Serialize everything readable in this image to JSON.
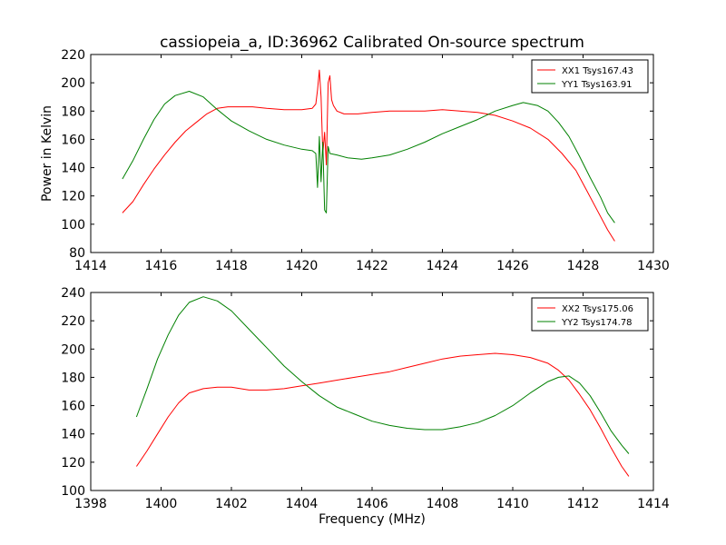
{
  "chart_data": [
    {
      "type": "line",
      "title": "cassiopeia_a, ID:36962 Calibrated On-source spectrum",
      "xlabel": "",
      "ylabel": "Power in Kelvin",
      "xlim": [
        1414,
        1430
      ],
      "ylim": [
        80,
        220
      ],
      "xticks": [
        1414,
        1416,
        1418,
        1420,
        1422,
        1424,
        1426,
        1428,
        1430
      ],
      "yticks": [
        80,
        100,
        120,
        140,
        160,
        180,
        200,
        220
      ],
      "grid": false,
      "legend_position": "top-right",
      "series": [
        {
          "name": "XX1 Tsys167.43",
          "color": "#ff0000",
          "points": [
            [
              1414.9,
              108
            ],
            [
              1415.2,
              116
            ],
            [
              1415.5,
              128
            ],
            [
              1415.8,
              139
            ],
            [
              1416.1,
              149
            ],
            [
              1416.4,
              158
            ],
            [
              1416.7,
              166
            ],
            [
              1417.0,
              172
            ],
            [
              1417.3,
              178
            ],
            [
              1417.6,
              182
            ],
            [
              1417.9,
              183
            ],
            [
              1418.2,
              183
            ],
            [
              1418.6,
              183
            ],
            [
              1419.0,
              182
            ],
            [
              1419.5,
              181
            ],
            [
              1420.0,
              181
            ],
            [
              1420.3,
              182
            ],
            [
              1420.4,
              185
            ],
            [
              1420.45,
              195
            ],
            [
              1420.5,
              209
            ],
            [
              1420.55,
              190
            ],
            [
              1420.6,
              150
            ],
            [
              1420.65,
              165
            ],
            [
              1420.7,
              142
            ],
            [
              1420.75,
              200
            ],
            [
              1420.8,
              205
            ],
            [
              1420.85,
              188
            ],
            [
              1420.9,
              184
            ],
            [
              1421.0,
              180
            ],
            [
              1421.2,
              178
            ],
            [
              1421.6,
              178
            ],
            [
              1422.0,
              179
            ],
            [
              1422.5,
              180
            ],
            [
              1423.0,
              180
            ],
            [
              1423.5,
              180
            ],
            [
              1424.0,
              181
            ],
            [
              1424.5,
              180
            ],
            [
              1425.0,
              179
            ],
            [
              1425.5,
              177
            ],
            [
              1426.0,
              173
            ],
            [
              1426.5,
              168
            ],
            [
              1427.0,
              160
            ],
            [
              1427.4,
              150
            ],
            [
              1427.8,
              138
            ],
            [
              1428.1,
              124
            ],
            [
              1428.4,
              110
            ],
            [
              1428.7,
              96
            ],
            [
              1428.9,
              88
            ]
          ]
        },
        {
          "name": "YY1 Tsys163.91",
          "color": "#008000",
          "points": [
            [
              1414.9,
              132
            ],
            [
              1415.2,
              145
            ],
            [
              1415.5,
              160
            ],
            [
              1415.8,
              174
            ],
            [
              1416.1,
              185
            ],
            [
              1416.4,
              191
            ],
            [
              1416.8,
              194
            ],
            [
              1417.2,
              190
            ],
            [
              1417.6,
              181
            ],
            [
              1418.0,
              173
            ],
            [
              1418.5,
              166
            ],
            [
              1419.0,
              160
            ],
            [
              1419.5,
              156
            ],
            [
              1420.0,
              153
            ],
            [
              1420.3,
              152
            ],
            [
              1420.4,
              150
            ],
            [
              1420.45,
              126
            ],
            [
              1420.5,
              162
            ],
            [
              1420.55,
              130
            ],
            [
              1420.6,
              158
            ],
            [
              1420.65,
              110
            ],
            [
              1420.7,
              108
            ],
            [
              1420.75,
              155
            ],
            [
              1420.8,
              150
            ],
            [
              1421.0,
              149
            ],
            [
              1421.3,
              147
            ],
            [
              1421.7,
              146
            ],
            [
              1422.0,
              147
            ],
            [
              1422.5,
              149
            ],
            [
              1423.0,
              153
            ],
            [
              1423.5,
              158
            ],
            [
              1424.0,
              164
            ],
            [
              1424.5,
              169
            ],
            [
              1425.0,
              174
            ],
            [
              1425.5,
              180
            ],
            [
              1426.0,
              184
            ],
            [
              1426.3,
              186
            ],
            [
              1426.7,
              184
            ],
            [
              1427.0,
              180
            ],
            [
              1427.3,
              172
            ],
            [
              1427.6,
              162
            ],
            [
              1427.9,
              148
            ],
            [
              1428.2,
              133
            ],
            [
              1428.5,
              119
            ],
            [
              1428.7,
              108
            ],
            [
              1428.9,
              101
            ]
          ]
        }
      ]
    },
    {
      "type": "line",
      "title": "",
      "xlabel": "Frequency (MHz)",
      "ylabel": "",
      "xlim": [
        1398,
        1414
      ],
      "ylim": [
        100,
        240
      ],
      "xticks": [
        1398,
        1400,
        1402,
        1404,
        1406,
        1408,
        1410,
        1412,
        1414
      ],
      "yticks": [
        100,
        120,
        140,
        160,
        180,
        200,
        220,
        240
      ],
      "grid": false,
      "legend_position": "top-right",
      "series": [
        {
          "name": "XX2 Tsys175.06",
          "color": "#ff0000",
          "points": [
            [
              1399.3,
              117
            ],
            [
              1399.6,
              128
            ],
            [
              1399.9,
              140
            ],
            [
              1400.2,
              152
            ],
            [
              1400.5,
              162
            ],
            [
              1400.8,
              169
            ],
            [
              1401.2,
              172
            ],
            [
              1401.6,
              173
            ],
            [
              1402.0,
              173
            ],
            [
              1402.5,
              171
            ],
            [
              1403.0,
              171
            ],
            [
              1403.5,
              172
            ],
            [
              1404.0,
              174
            ],
            [
              1404.5,
              176
            ],
            [
              1405.0,
              178
            ],
            [
              1405.5,
              180
            ],
            [
              1406.0,
              182
            ],
            [
              1406.5,
              184
            ],
            [
              1407.0,
              187
            ],
            [
              1407.5,
              190
            ],
            [
              1408.0,
              193
            ],
            [
              1408.5,
              195
            ],
            [
              1409.0,
              196
            ],
            [
              1409.5,
              197
            ],
            [
              1410.0,
              196
            ],
            [
              1410.5,
              194
            ],
            [
              1411.0,
              190
            ],
            [
              1411.3,
              185
            ],
            [
              1411.6,
              178
            ],
            [
              1411.9,
              168
            ],
            [
              1412.2,
              157
            ],
            [
              1412.5,
              144
            ],
            [
              1412.8,
              130
            ],
            [
              1413.1,
              117
            ],
            [
              1413.3,
              110
            ]
          ]
        },
        {
          "name": "YY2 Tsys174.78",
          "color": "#008000",
          "points": [
            [
              1399.3,
              152
            ],
            [
              1399.6,
              172
            ],
            [
              1399.9,
              193
            ],
            [
              1400.2,
              210
            ],
            [
              1400.5,
              224
            ],
            [
              1400.8,
              233
            ],
            [
              1401.2,
              237
            ],
            [
              1401.6,
              234
            ],
            [
              1402.0,
              227
            ],
            [
              1402.5,
              214
            ],
            [
              1403.0,
              201
            ],
            [
              1403.5,
              188
            ],
            [
              1404.0,
              177
            ],
            [
              1404.5,
              167
            ],
            [
              1405.0,
              159
            ],
            [
              1405.5,
              154
            ],
            [
              1406.0,
              149
            ],
            [
              1406.5,
              146
            ],
            [
              1407.0,
              144
            ],
            [
              1407.5,
              143
            ],
            [
              1408.0,
              143
            ],
            [
              1408.5,
              145
            ],
            [
              1409.0,
              148
            ],
            [
              1409.5,
              153
            ],
            [
              1410.0,
              160
            ],
            [
              1410.5,
              169
            ],
            [
              1411.0,
              177
            ],
            [
              1411.3,
              180
            ],
            [
              1411.6,
              181
            ],
            [
              1411.9,
              176
            ],
            [
              1412.2,
              167
            ],
            [
              1412.5,
              155
            ],
            [
              1412.8,
              142
            ],
            [
              1413.1,
              132
            ],
            [
              1413.3,
              126
            ]
          ]
        }
      ]
    }
  ]
}
